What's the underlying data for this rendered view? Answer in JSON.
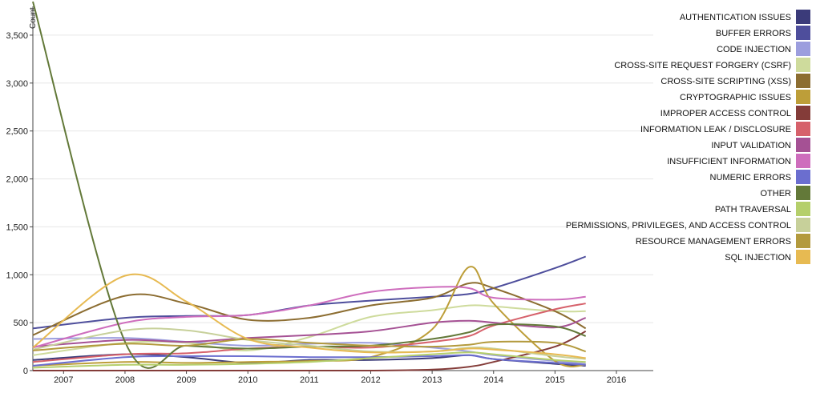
{
  "chart_data": {
    "type": "line",
    "title": "",
    "xlabel": "",
    "ylabel": "Count",
    "xlim": [
      2006.5,
      2016.6
    ],
    "ylim": [
      0,
      3800
    ],
    "x_ticks": [
      "2007",
      "2008",
      "2009",
      "2010",
      "2011",
      "2012",
      "2013",
      "2014",
      "2015",
      "2016"
    ],
    "y_ticks": [
      "0",
      "500",
      "1,000",
      "1,500",
      "2,000",
      "2,500",
      "3,000",
      "3,500"
    ],
    "y_tick_values": [
      0,
      500,
      1000,
      1500,
      2000,
      2500,
      3000,
      3500
    ],
    "grid": "horizontal",
    "legend": "right",
    "x": [
      2006.5,
      2008,
      2009,
      2010,
      2011,
      2012,
      2013,
      2013.6,
      2014,
      2015,
      2015.5
    ],
    "series": [
      {
        "name": "AUTHENTICATION ISSUES",
        "color": "#3b3b7a",
        "values": [
          110,
          170,
          140,
          80,
          110,
          110,
          130,
          160,
          120,
          70,
          50
        ]
      },
      {
        "name": "BUFFER ERRORS",
        "color": "#4e4e9c",
        "values": [
          440,
          550,
          570,
          580,
          680,
          730,
          770,
          800,
          860,
          1070,
          1190
        ]
      },
      {
        "name": "CODE INJECTION",
        "color": "#9c9ede",
        "values": [
          330,
          340,
          300,
          260,
          280,
          290,
          240,
          200,
          160,
          100,
          70
        ]
      },
      {
        "name": "CROSS-SITE REQUEST FORGERY (CSRF)",
        "color": "#cedb9c",
        "values": [
          160,
          290,
          290,
          210,
          350,
          560,
          630,
          680,
          670,
          620,
          620
        ]
      },
      {
        "name": "CROSS-SITE SCRIPTING (XSS)",
        "color": "#8c6d31",
        "values": [
          370,
          780,
          700,
          530,
          550,
          680,
          760,
          910,
          860,
          620,
          440
        ]
      },
      {
        "name": "CRYPTOGRAPHIC ISSUES",
        "color": "#bd9e39",
        "values": [
          50,
          90,
          80,
          90,
          100,
          140,
          430,
          1080,
          700,
          100,
          60
        ]
      },
      {
        "name": "IMPROPER ACCESS CONTROL",
        "color": "#843c39",
        "values": [
          0,
          0,
          0,
          0,
          0,
          0,
          10,
          40,
          90,
          250,
          410
        ]
      },
      {
        "name": "INFORMATION LEAK / DISCLOSURE",
        "color": "#d6616b",
        "values": [
          90,
          170,
          180,
          230,
          250,
          240,
          300,
          360,
          470,
          640,
          700
        ]
      },
      {
        "name": "INPUT VALIDATION",
        "color": "#a55194",
        "values": [
          250,
          320,
          300,
          340,
          370,
          410,
          500,
          520,
          500,
          450,
          550
        ]
      },
      {
        "name": "INSUFFICIENT INFORMATION",
        "color": "#ce6dbd",
        "values": [
          240,
          500,
          560,
          580,
          680,
          820,
          870,
          860,
          760,
          740,
          770
        ]
      },
      {
        "name": "NUMERIC ERRORS",
        "color": "#6b6ecf",
        "values": [
          50,
          140,
          150,
          150,
          140,
          140,
          150,
          160,
          120,
          80,
          60
        ]
      },
      {
        "name": "OTHER",
        "color": "#637939",
        "values": [
          3850,
          300,
          260,
          230,
          250,
          260,
          330,
          400,
          480,
          460,
          360
        ]
      },
      {
        "name": "PATH TRAVERSAL",
        "color": "#b5cf6b",
        "values": [
          30,
          60,
          60,
          70,
          90,
          130,
          170,
          190,
          170,
          110,
          90
        ]
      },
      {
        "name": "PERMISSIONS, PRIVILEGES, AND ACCESS CONTROL",
        "color": "#c7d09a",
        "values": [
          220,
          420,
          420,
          320,
          260,
          200,
          200,
          240,
          230,
          150,
          120
        ]
      },
      {
        "name": "RESOURCE MANAGEMENT ERRORS",
        "color": "#b39a3d",
        "values": [
          210,
          280,
          260,
          330,
          290,
          260,
          250,
          270,
          300,
          290,
          200
        ]
      },
      {
        "name": "SQL INJECTION",
        "color": "#e7ba52",
        "values": [
          240,
          990,
          720,
          330,
          240,
          190,
          200,
          230,
          220,
          170,
          130
        ]
      }
    ]
  }
}
